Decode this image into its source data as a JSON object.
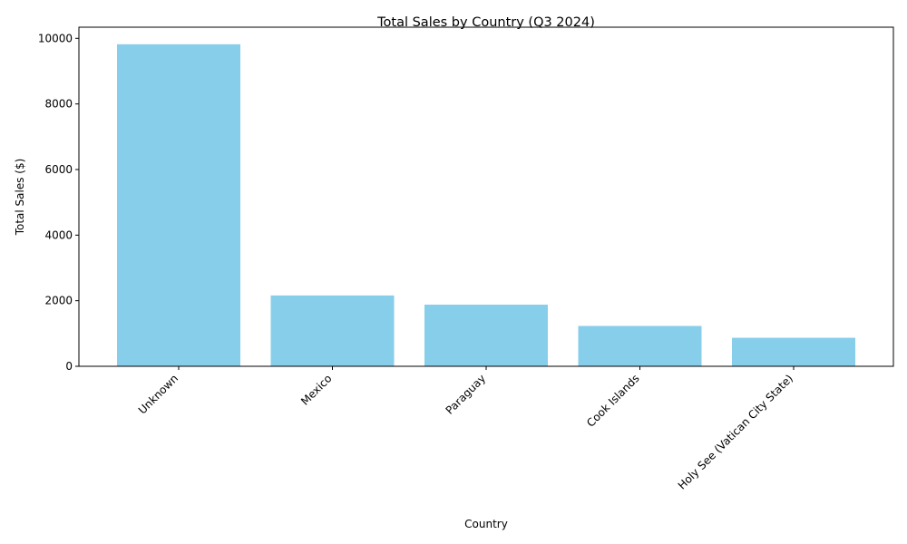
{
  "chart_data": {
    "type": "bar",
    "title": "Total Sales by Country (Q3 2024)",
    "xlabel": "Country",
    "ylabel": "Total Sales ($)",
    "categories": [
      "Unknown",
      "Mexico",
      "Paraguay",
      "Cook Islands",
      "Holy See (Vatican City State)"
    ],
    "values": [
      9820,
      2160,
      1880,
      1230,
      870
    ],
    "ylim": [
      0,
      10340
    ],
    "yticks": [
      0,
      2000,
      4000,
      6000,
      8000,
      10000
    ],
    "bar_color": "#87CEEB",
    "grid": false,
    "legend": "none"
  }
}
